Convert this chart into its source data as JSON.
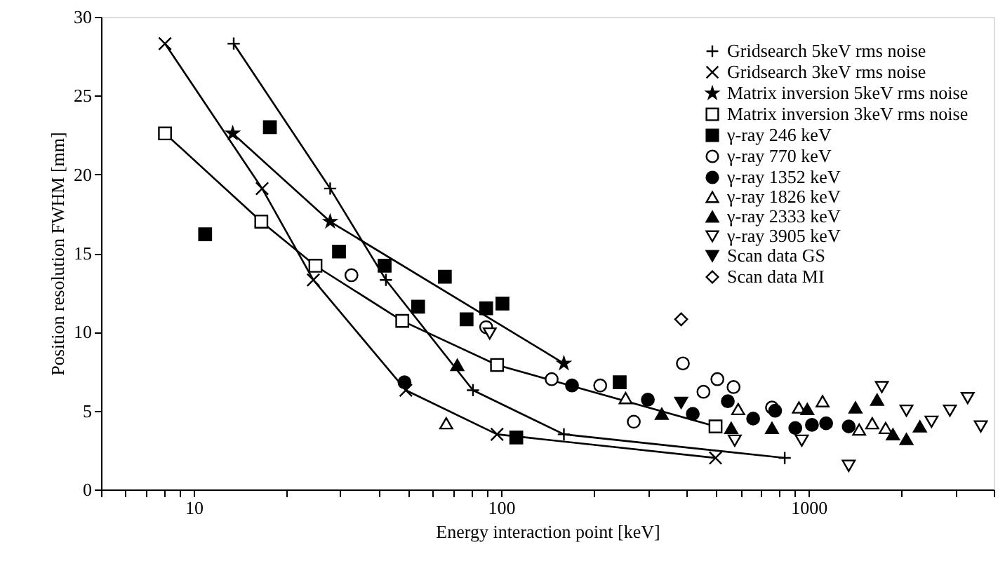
{
  "chart_data": {
    "type": "scatter",
    "xlabel": "Energy interaction point [keV]",
    "ylabel": "Position resolution FWHM [mm]",
    "log": "x",
    "xlim": [
      5,
      4000
    ],
    "ylim": [
      0,
      30
    ],
    "xticks": [
      {
        "value": 5,
        "label": null
      },
      {
        "value": 6,
        "label": null
      },
      {
        "value": 7,
        "label": null
      },
      {
        "value": 8,
        "label": null
      },
      {
        "value": 9,
        "label": null
      },
      10,
      {
        "value": 20,
        "label": null
      },
      {
        "value": 30,
        "label": null
      },
      {
        "value": 40,
        "label": null
      },
      {
        "value": 50,
        "label": null
      },
      {
        "value": 60,
        "label": null
      },
      {
        "value": 70,
        "label": null
      },
      {
        "value": 80,
        "label": null
      },
      {
        "value": 90,
        "label": null
      },
      100,
      {
        "value": 200,
        "label": null
      },
      {
        "value": 300,
        "label": null
      },
      {
        "value": 400,
        "label": null
      },
      {
        "value": 500,
        "label": null
      },
      {
        "value": 600,
        "label": null
      },
      {
        "value": 700,
        "label": null
      },
      {
        "value": 800,
        "label": null
      },
      {
        "value": 900,
        "label": null
      },
      1000,
      {
        "value": 2000,
        "label": null
      },
      {
        "value": 3000,
        "label": null
      },
      {
        "value": 4000,
        "label": null
      }
    ],
    "yticks": [
      0,
      5,
      10,
      15,
      20,
      25,
      30
    ],
    "grid": false,
    "legend": "top right",
    "series": [
      {
        "name": "Gridsearch 5keV rms noise",
        "type": "line",
        "marker": "cross",
        "color": "#000000",
        "x": [
          13.5,
          27.8,
          42.2,
          81,
          160,
          836
        ],
        "values": [
          28.3,
          19.1,
          13.3,
          6.3,
          3.5,
          2.0
        ]
      },
      {
        "name": "Gridsearch 3keV rms noise",
        "type": "line",
        "marker": "x",
        "color": "#000000",
        "x": [
          8.07,
          16.7,
          24.5,
          49,
          97,
          498
        ],
        "values": [
          28.3,
          19.1,
          13.3,
          6.3,
          3.5,
          2.0
        ]
      },
      {
        "name": "Matrix inversion 5keV rms noise",
        "type": "line",
        "marker": "star",
        "color": "#000000",
        "x": [
          13.4,
          27.8,
          160
        ],
        "values": [
          22.6,
          17.0,
          8.0
        ]
      },
      {
        "name": "Matrix inversion 3keV rms noise",
        "type": "line",
        "marker": "square_open",
        "color": "#000000",
        "x": [
          8.07,
          16.6,
          24.9,
          47.7,
          97,
          498
        ],
        "values": [
          22.6,
          17.0,
          14.2,
          10.7,
          7.9,
          4.0
        ]
      },
      {
        "name": "γ-ray 246 keV",
        "type": "scatter",
        "marker": "square",
        "color": "#000000",
        "x": [
          10.9,
          17.7,
          29.7,
          41.8,
          53.7,
          65.6,
          77.2,
          89.4,
          101,
          112,
          243
        ],
        "values": [
          16.2,
          23.0,
          15.1,
          14.2,
          11.6,
          13.5,
          10.8,
          11.5,
          11.8,
          3.3,
          6.8
        ]
      },
      {
        "name": "γ-ray 770 keV",
        "type": "scatter",
        "marker": "circle_open",
        "color": "#000000",
        "x": [
          32.6,
          89.4,
          146,
          210,
          270,
          390,
          455,
          505,
          570,
          760
        ],
        "values": [
          13.6,
          10.3,
          7.0,
          6.6,
          4.3,
          8.0,
          6.2,
          7.0,
          6.5,
          5.2
        ]
      },
      {
        "name": "γ-ray 1352 keV",
        "type": "scatter",
        "marker": "circle",
        "color": "#000000",
        "x": [
          48.5,
          170,
          300,
          420,
          546,
          660,
          778,
          905,
          1025,
          1140,
          1350
        ],
        "values": [
          6.8,
          6.6,
          5.7,
          4.8,
          5.6,
          4.5,
          5.0,
          3.9,
          4.1,
          4.2,
          4.0
        ]
      },
      {
        "name": "γ-ray 1826 keV",
        "type": "scatter",
        "marker": "triangle_open",
        "color": "#000000",
        "x": [
          66.3,
          254,
          590,
          930,
          1110,
          1460,
          1610,
          1780
        ],
        "values": [
          4.2,
          5.8,
          5.1,
          5.2,
          5.6,
          3.8,
          4.2,
          3.9
        ]
      },
      {
        "name": "γ-ray 2333 keV",
        "type": "scatter",
        "marker": "triangle",
        "color": "#000000",
        "x": [
          72,
          333,
          560,
          760,
          990,
          1420,
          1670,
          1880,
          2080,
          2300
        ],
        "values": [
          7.9,
          4.8,
          3.9,
          3.9,
          5.1,
          5.2,
          5.7,
          3.5,
          3.2,
          4.0
        ]
      },
      {
        "name": "γ-ray 3905 keV",
        "type": "scatter",
        "marker": "triangle_down_open",
        "color": "#000000",
        "x": [
          91.8,
          575,
          950,
          1350,
          1730,
          2080,
          2510,
          2880,
          3290,
          3630
        ],
        "values": [
          9.9,
          3.1,
          3.1,
          1.5,
          6.5,
          5.0,
          4.3,
          5.0,
          5.8,
          4.0
        ]
      },
      {
        "name": "Scan data GS",
        "type": "scatter",
        "marker": "triangle_down",
        "color": "#000000",
        "x": [
          385
        ],
        "values": [
          5.5
        ]
      },
      {
        "name": "Scan data MI",
        "type": "scatter",
        "marker": "diamond_open",
        "color": "#000000",
        "x": [
          385
        ],
        "values": [
          10.8
        ]
      }
    ]
  }
}
